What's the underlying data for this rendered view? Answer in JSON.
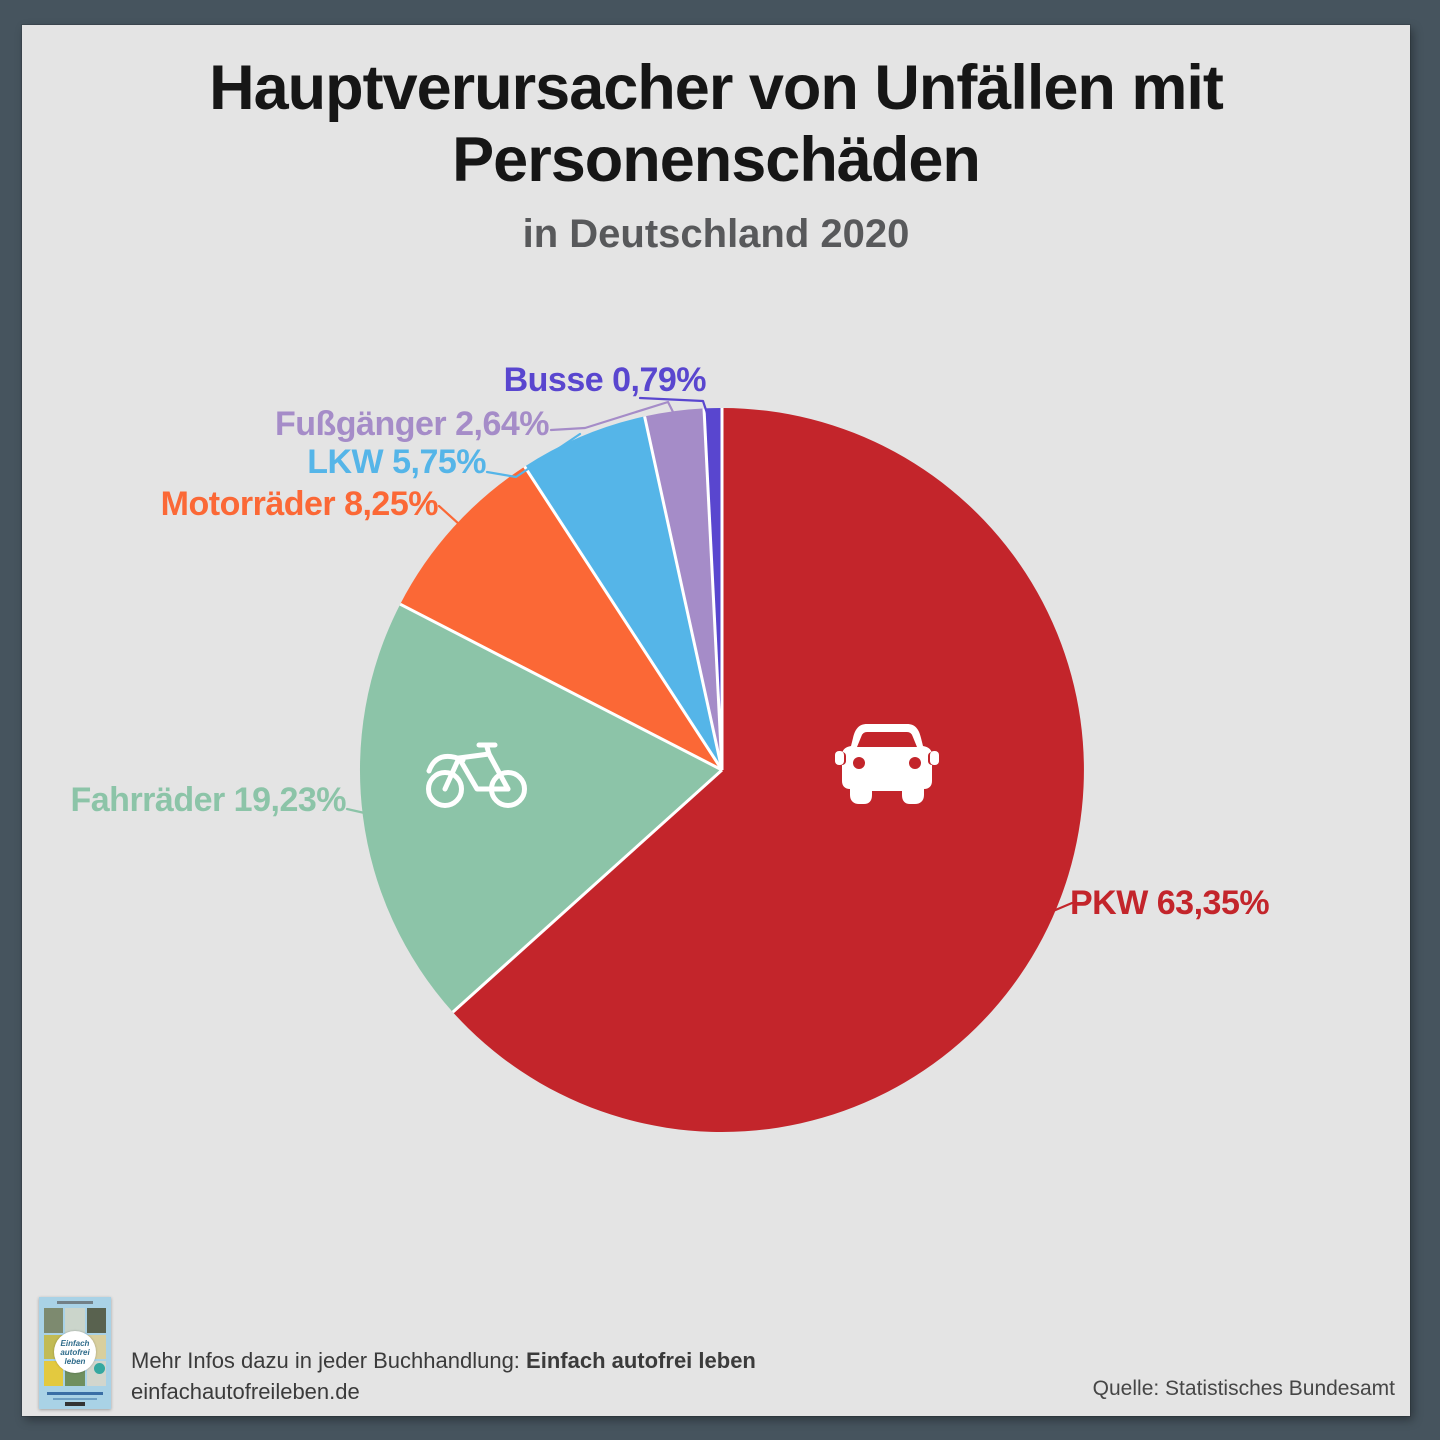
{
  "header": {
    "title_line1": "Hauptverursacher von Unfällen mit",
    "title_line2": "Personenschäden",
    "subtitle": "in Deutschland 2020"
  },
  "chart_data": {
    "type": "pie",
    "title": "Hauptverursacher von Unfällen mit Personenschäden",
    "subtitle": "in Deutschland 2020",
    "unit": "%",
    "direction": "clockwise",
    "start_angle_deg": 0,
    "legend_position": "labels-around-pie",
    "slices": [
      {
        "label": "PKW",
        "value": 63.35,
        "display": "PKW 63,35%",
        "color": "#C3252B",
        "icon": "car"
      },
      {
        "label": "Fahrräder",
        "value": 19.23,
        "display": "Fahrräder 19,23%",
        "color": "#8CC4A8",
        "icon": "bicycle"
      },
      {
        "label": "Motorräder",
        "value": 8.25,
        "display": "Motorräder 8,25%",
        "color": "#FB6836"
      },
      {
        "label": "LKW",
        "value": 5.75,
        "display": "LKW 5,75%",
        "color": "#55B5E8"
      },
      {
        "label": "Fußgänger",
        "value": 2.64,
        "display": "Fußgänger 2,64%",
        "color": "#A58CC8"
      },
      {
        "label": "Busse",
        "value": 0.79,
        "display": "Busse 0,79%",
        "color": "#5946CF"
      }
    ],
    "separator_color": "#FFFFFF",
    "background_color": "#E4E4E4"
  },
  "footer": {
    "info_prefix": "Mehr Infos dazu in jeder Buchhandlung: ",
    "info_bold": "Einfach autofrei leben",
    "website": "einfachautofreileben.de",
    "source": "Quelle: Statistisches Bundesamt",
    "book_cover_circle_text": "Einfach autofrei leben"
  }
}
